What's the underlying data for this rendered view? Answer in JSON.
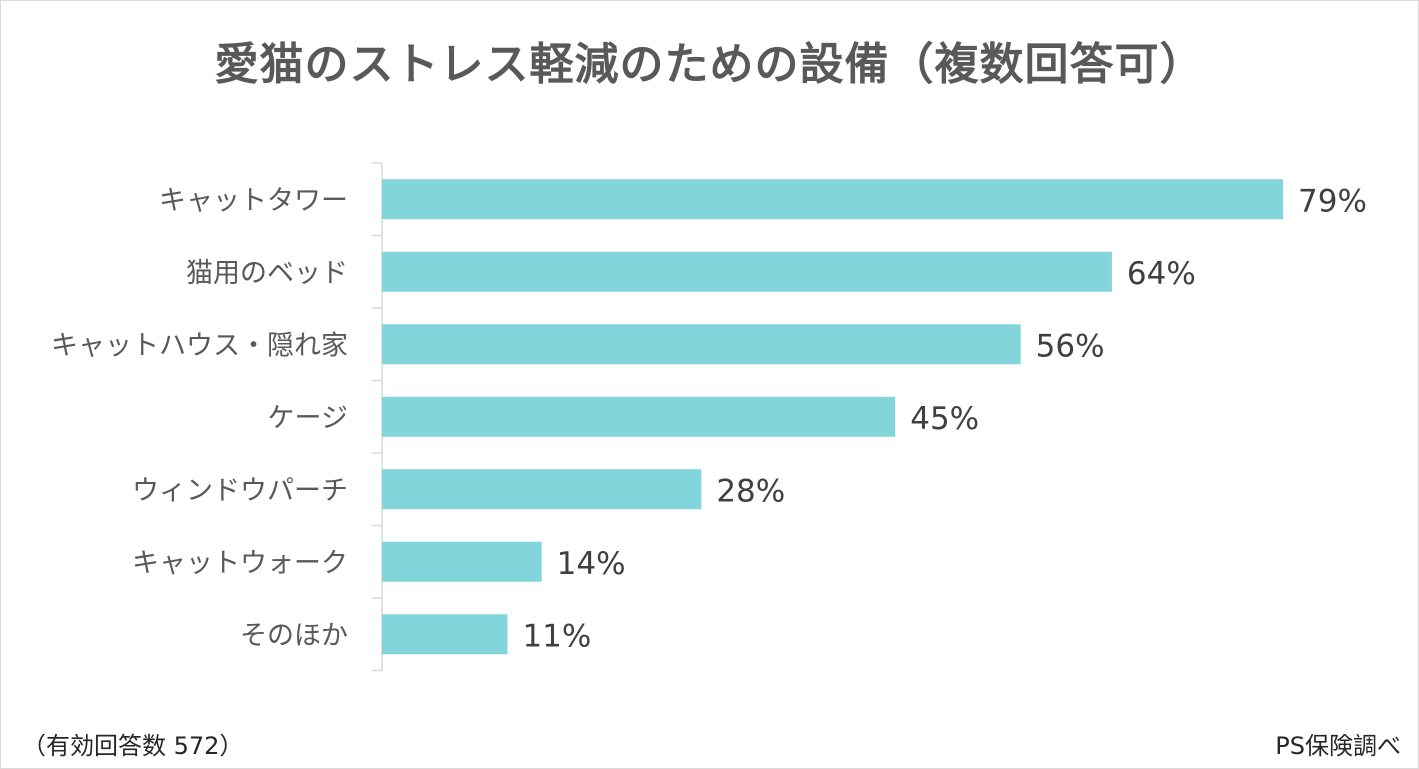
{
  "chart_data": {
    "type": "bar",
    "orientation": "horizontal",
    "title": "愛猫のストレス軽減のための設備（複数回答可）",
    "categories": [
      "キャットタワー",
      "猫用のベッド",
      "キャットハウス・隠れ家",
      "ケージ",
      "ウィンドウパーチ",
      "キャットウォーク",
      "そのほか"
    ],
    "values": [
      79,
      64,
      56,
      45,
      28,
      14,
      11
    ],
    "value_labels": [
      "79%",
      "64%",
      "56%",
      "45%",
      "28%",
      "14%",
      "11%"
    ],
    "value_unit": "%",
    "xlim": [
      0,
      79
    ],
    "grid": false,
    "legend": "none",
    "bar_color": "#82d6db"
  },
  "footer": {
    "sample_note": "（有効回答数 572）",
    "source": "PS保険調べ"
  }
}
